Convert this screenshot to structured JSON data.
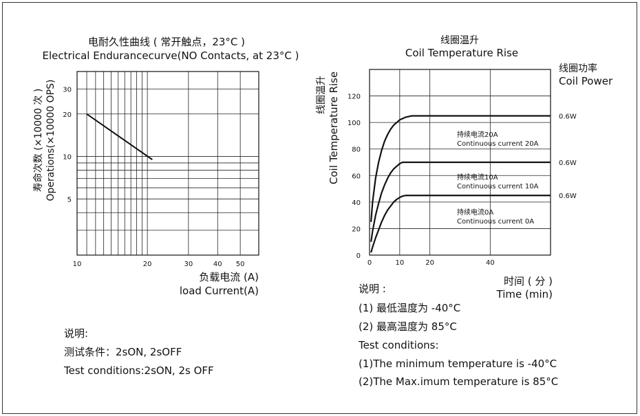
{
  "left_chart": {
    "title_cn": "电耐久性曲线 ( 常开触点，23°C )",
    "title_en": "Electrical Endurancecurve(NO Contacts, at 23°C )",
    "ylabel_cn": "寿命次数 (×10000 次 )",
    "ylabel_en": "Operations(×10000 OPS)",
    "xlabel_cn": "负载电流 (A)",
    "xlabel_en": "load Current(A)",
    "notes": [
      "说明:",
      "测试条件：2sON, 2sOFF",
      "Test conditions:2sON, 2s OFF"
    ]
  },
  "right_chart": {
    "title_cn": "线圈温升",
    "title_en": "Coil Temperature Rise",
    "ylabel_cn": "线圈温升",
    "ylabel_en": "Coil Temperature Rise",
    "power_label_cn": "线圈功率",
    "power_label_en": "Coil Power",
    "xlabel_cn": "时间 ( 分 )",
    "xlabel_en": "Time (min)",
    "notes": [
      "说明 :",
      "(1) 最低温度为 -40°C",
      "(2) 最高温度为 85°C",
      "Test conditions:",
      "(1)The minimum temperature is -40°C",
      "(2)The Max.imum temperature is 85°C"
    ]
  },
  "chart_data": [
    {
      "type": "line",
      "title": "电耐久性曲线 ( 常开触点，23°C ) Electrical Endurancecurve(NO Contacts, at 23°C )",
      "xlabel": "负载电流 (A) load Current(A)",
      "ylabel": "寿命次数 (×10000 次 ) Operations(×10000 OPS)",
      "xscale": "log",
      "yscale": "log",
      "xlim": [
        10,
        60
      ],
      "ylim": [
        2,
        40
      ],
      "xticks": [
        10,
        20,
        30,
        40,
        50
      ],
      "yticks": [
        5,
        10,
        20,
        30
      ],
      "grid": true,
      "series": [
        {
          "x": [
            11,
            21
          ],
          "y": [
            20,
            9.5
          ]
        }
      ]
    },
    {
      "type": "line",
      "title": "线圈温升 Coil Temperature Rise",
      "xlabel": "时间 ( 分 ) Time (min)",
      "ylabel": "线圈温升 Coil Temperature Rise",
      "xlim": [
        0,
        60
      ],
      "ylim": [
        0,
        140
      ],
      "xticks": [
        0,
        10,
        20,
        40
      ],
      "yticks": [
        0,
        20,
        40,
        60,
        80,
        100,
        120
      ],
      "grid": true,
      "series": [
        {
          "name_cn": "持续电流20A",
          "name": "Continuous current 20A",
          "power": "0.6W",
          "x": [
            0.5,
            1,
            2,
            3,
            4,
            5,
            6,
            7,
            8,
            9,
            10,
            11,
            12,
            13,
            14,
            15,
            20,
            30,
            40,
            50,
            60
          ],
          "y": [
            25,
            40,
            58,
            70,
            79,
            86,
            91,
            95,
            98,
            100,
            102,
            103,
            104,
            104.5,
            105,
            105,
            105,
            105,
            105,
            105,
            105
          ]
        },
        {
          "name_cn": "持续电流10A",
          "name": "Continuous current 10A",
          "power": "0.6W",
          "x": [
            0.5,
            1,
            2,
            3,
            4,
            5,
            6,
            7,
            8,
            9,
            10,
            11,
            12,
            15,
            20,
            30,
            40,
            50,
            60
          ],
          "y": [
            10,
            18,
            30,
            39,
            47,
            53,
            58,
            62,
            65,
            67,
            69,
            70,
            70,
            70,
            70,
            70,
            70,
            70,
            70
          ]
        },
        {
          "name_cn": "持续电流0A",
          "name": "Continuous current 0A",
          "power": "0.6W",
          "x": [
            0.5,
            1,
            2,
            3,
            4,
            5,
            6,
            7,
            8,
            9,
            10,
            11,
            12,
            15,
            20,
            30,
            40,
            50,
            60
          ],
          "y": [
            2,
            6,
            13,
            19,
            25,
            30,
            34,
            37,
            40,
            42,
            43.5,
            44.5,
            45,
            45,
            45,
            45,
            45,
            45,
            45
          ]
        }
      ]
    }
  ]
}
